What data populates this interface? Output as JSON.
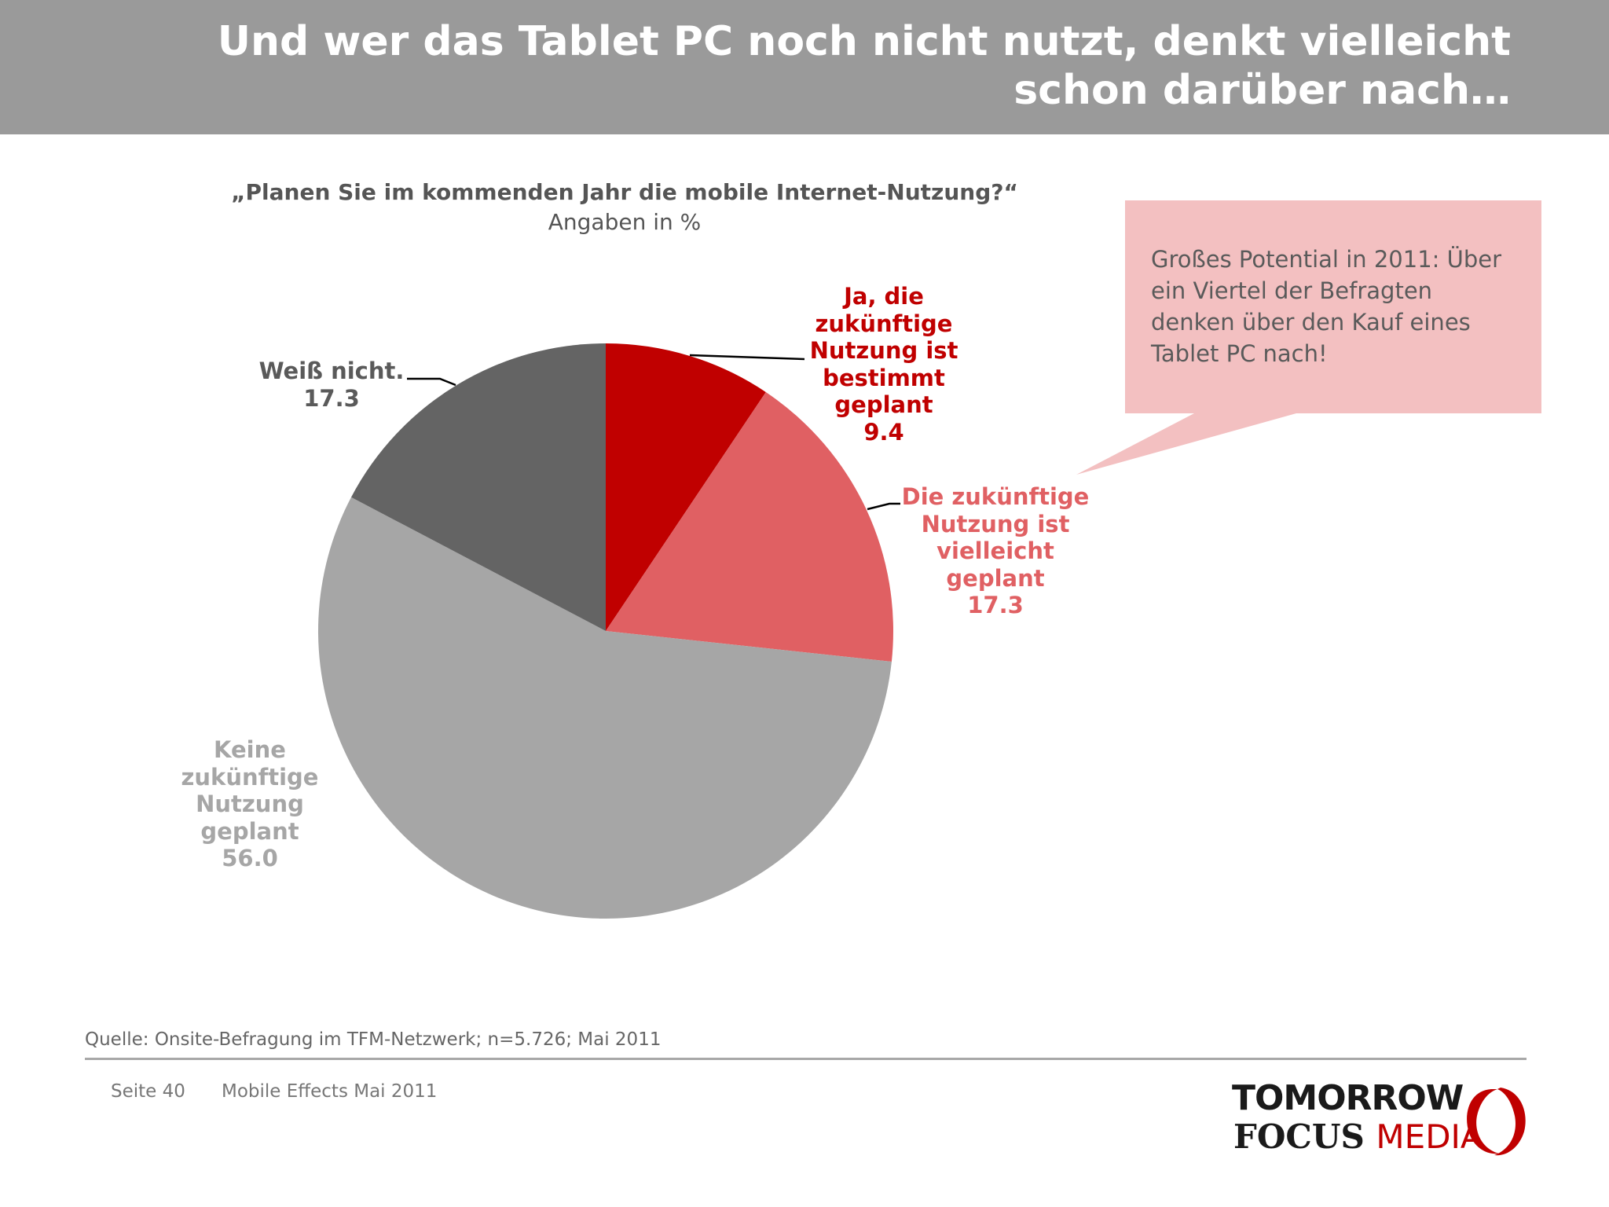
{
  "header": {
    "title_line1": "Und wer das Tablet PC noch nicht nutzt, denkt vielleicht",
    "title_line2": "schon darüber nach…"
  },
  "chart_data": {
    "type": "pie",
    "title": "„Planen Sie im kommenden Jahr die mobile Internet-Nutzung?“",
    "subtitle": "Angaben in %",
    "slices": [
      {
        "label_lines": [
          "Ja, die",
          "zukünftige",
          "Nutzung ist",
          "bestimmt",
          "geplant"
        ],
        "value": 9.4,
        "value_text": "9.4",
        "color": "#c00000",
        "label_color": "#c00000"
      },
      {
        "label_lines": [
          "Die zukünftige",
          "Nutzung ist",
          "vielleicht",
          "geplant"
        ],
        "value": 17.3,
        "value_text": "17.3",
        "color": "#e06063",
        "label_color": "#e06063"
      },
      {
        "label_lines": [
          "Keine",
          "zukünftige",
          "Nutzung",
          "geplant"
        ],
        "value": 56.0,
        "value_text": "56.0",
        "color": "#a6a6a6",
        "label_color": "#a6a6a6"
      },
      {
        "label_lines": [
          "Weiß nicht."
        ],
        "value": 17.3,
        "value_text": "17.3",
        "color": "#646464",
        "label_color": "#5a5a5a"
      }
    ]
  },
  "callout": {
    "line1": "Großes Potential in 2011: Über",
    "line2": "ein Viertel der Befragten",
    "line3": "denken über den Kauf eines",
    "line4": "Tablet PC nach!",
    "color": "#f3c0c1"
  },
  "source": "Quelle: Onsite-Befragung im TFM-Netzwerk; n=5.726; Mai 2011",
  "footer": {
    "page": "Seite 40",
    "doc": "Mobile Effects Mai 2011"
  },
  "logo": {
    "line1": "TOMORROW",
    "line2_a": "FOCUS",
    "line2_b": "MEDIA"
  }
}
